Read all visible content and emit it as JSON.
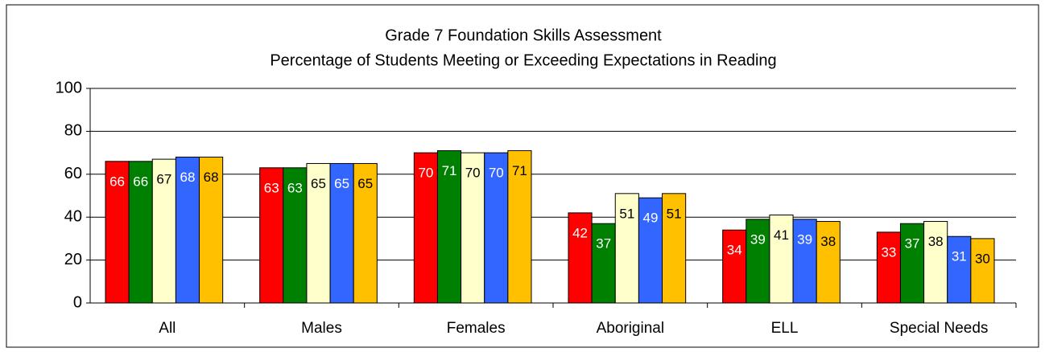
{
  "chart_data": {
    "type": "bar",
    "title": "Grade 7 Foundation Skills Assessment",
    "subtitle": "Percentage of Students Meeting or Exceeding Expectations in Reading",
    "categories": [
      "All",
      "Males",
      "Females",
      "Aboriginal",
      "ELL",
      "Special Needs"
    ],
    "series": [
      {
        "color": "#ff0000",
        "label_color": "#ffffff",
        "values": [
          66,
          63,
          70,
          42,
          34,
          33
        ]
      },
      {
        "color": "#008000",
        "label_color": "#ffffff",
        "values": [
          66,
          63,
          71,
          37,
          39,
          37
        ]
      },
      {
        "color": "#ffffcc",
        "label_color": "#000000",
        "values": [
          67,
          65,
          70,
          51,
          41,
          38
        ]
      },
      {
        "color": "#3366ff",
        "label_color": "#ffffff",
        "values": [
          68,
          65,
          70,
          49,
          39,
          31
        ]
      },
      {
        "color": "#ffc000",
        "label_color": "#000000",
        "values": [
          68,
          65,
          71,
          51,
          38,
          30
        ]
      }
    ],
    "ylim": [
      0,
      100
    ],
    "yticks": [
      0,
      20,
      40,
      60,
      80,
      100
    ],
    "grid": true
  }
}
